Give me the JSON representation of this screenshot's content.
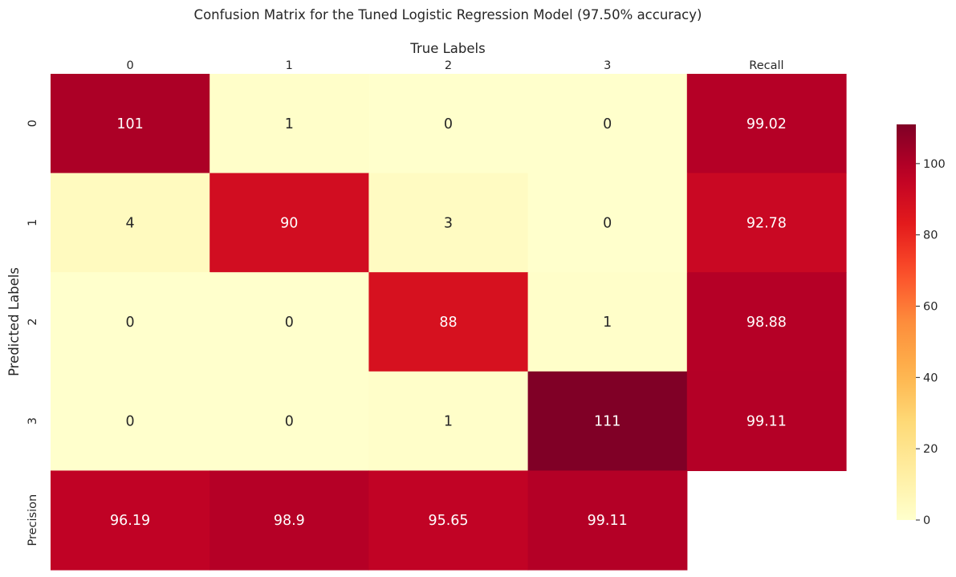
{
  "chart_data": {
    "type": "heatmap",
    "title": "Confusion Matrix for the Tuned Logistic Regression Model (97.50% accuracy)",
    "xlabel": "True Labels",
    "ylabel": "Predicted Labels",
    "x_ticks": [
      "0",
      "1",
      "2",
      "3",
      "Recall"
    ],
    "y_ticks": [
      "0",
      "1",
      "2",
      "3",
      "Precision"
    ],
    "values": [
      [
        101,
        1,
        0,
        0,
        99.02
      ],
      [
        4,
        90,
        3,
        0,
        92.78
      ],
      [
        0,
        0,
        88,
        1,
        98.88
      ],
      [
        0,
        0,
        1,
        111,
        99.11
      ],
      [
        96.19,
        98.9,
        95.65,
        99.11,
        null
      ]
    ],
    "labels": [
      [
        "101",
        "1",
        "0",
        "0",
        "99.02"
      ],
      [
        "4",
        "90",
        "3",
        "0",
        "92.78"
      ],
      [
        "0",
        "0",
        "88",
        "1",
        "98.88"
      ],
      [
        "0",
        "0",
        "1",
        "111",
        "99.11"
      ],
      [
        "96.19",
        "98.9",
        "95.65",
        "99.11",
        ""
      ]
    ],
    "colormap": "YlOrRd",
    "vmin": 0,
    "vmax": 111,
    "colorbar_ticks": [
      0,
      20,
      40,
      60,
      80,
      100
    ],
    "colorbar_tick_labels": [
      "0",
      "20",
      "40",
      "60",
      "80",
      "100"
    ],
    "x_ticks_position": "top",
    "grid": false,
    "legend": "colorbar right"
  }
}
